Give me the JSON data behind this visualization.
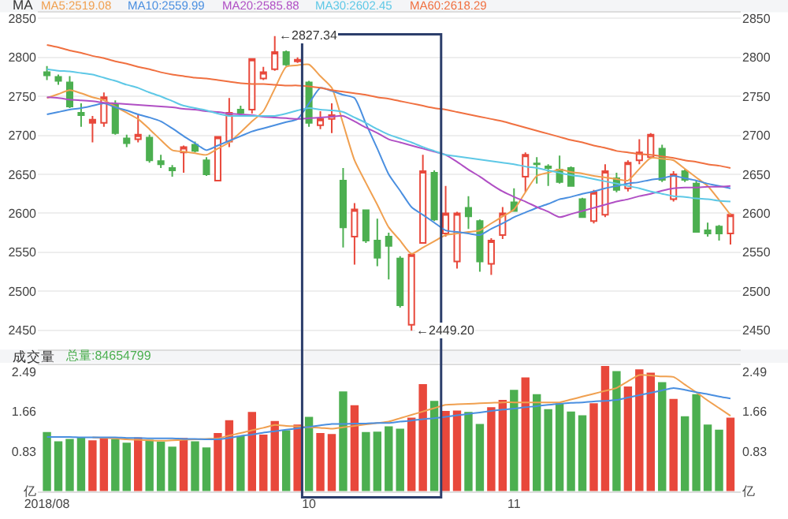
{
  "chart_data": [
    {
      "type": "candlestick",
      "title": "MA",
      "categories": [
        "2018/08",
        null,
        null,
        null,
        null,
        null,
        null,
        null,
        null,
        null,
        null,
        null,
        null,
        null,
        null,
        null,
        null,
        null,
        null,
        null,
        null,
        null,
        null,
        "10",
        null,
        null,
        null,
        null,
        null,
        null,
        null,
        null,
        null,
        null,
        null,
        null,
        null,
        null,
        null,
        null,
        null,
        "11",
        null,
        null,
        null,
        null,
        null,
        null,
        null,
        null,
        null,
        null,
        null,
        null,
        null,
        null,
        null,
        null,
        null,
        null,
        null
      ],
      "ohlc": [
        [
          2781,
          2789,
          2771,
          2777
        ],
        [
          2775,
          2778,
          2765,
          2770
        ],
        [
          2768,
          2776,
          2735,
          2737
        ],
        [
          2729,
          2741,
          2711,
          2726
        ],
        [
          2716,
          2725,
          2691,
          2720
        ],
        [
          2716,
          2755,
          2711,
          2749
        ],
        [
          2740,
          2745,
          2701,
          2703
        ],
        [
          2696,
          2701,
          2685,
          2690
        ],
        [
          2695,
          2726,
          2691,
          2701
        ],
        [
          2697,
          2701,
          2665,
          2668
        ],
        [
          2667,
          2675,
          2658,
          2663
        ],
        [
          2658,
          2662,
          2647,
          2655
        ],
        [
          2678,
          2687,
          2652,
          2685
        ],
        [
          2688,
          2692,
          2678,
          2680
        ],
        [
          2668,
          2672,
          2648,
          2650
        ],
        [
          2642,
          2699,
          2641,
          2698
        ],
        [
          2692,
          2748,
          2685,
          2729
        ],
        [
          2733,
          2738,
          2725,
          2729
        ],
        [
          2733,
          2798,
          2728,
          2798
        ],
        [
          2773,
          2788,
          2771,
          2781
        ],
        [
          2785,
          2827.34,
          2783,
          2807
        ],
        [
          2807,
          2809,
          2789,
          2791
        ],
        [
          2795,
          2800,
          2793,
          2797
        ],
        [
          2768,
          2770,
          2711,
          2716
        ],
        [
          2713,
          2731,
          2708,
          2721
        ],
        [
          2721,
          2741,
          2703,
          2726
        ],
        [
          2642,
          2658,
          2556,
          2582
        ],
        [
          2570,
          2613,
          2534,
          2605
        ],
        [
          2604,
          2605,
          2562,
          2565
        ],
        [
          2565,
          2593,
          2532,
          2543
        ],
        [
          2570,
          2575,
          2515,
          2558
        ],
        [
          2542,
          2545,
          2479,
          2482
        ],
        [
          2457,
          2547,
          2449.2,
          2547
        ],
        [
          2562,
          2675,
          2561,
          2654
        ],
        [
          2652,
          2655,
          2590,
          2592
        ],
        [
          2574,
          2635,
          2570,
          2600
        ],
        [
          2538,
          2602,
          2529,
          2600
        ],
        [
          2607,
          2622,
          2580,
          2596
        ],
        [
          2590,
          2592,
          2525,
          2538
        ],
        [
          2535,
          2568,
          2521,
          2565
        ],
        [
          2572,
          2608,
          2567,
          2600
        ],
        [
          2614,
          2632,
          2602,
          2603
        ],
        [
          2647,
          2678,
          2627,
          2675
        ],
        [
          2664,
          2672,
          2638,
          2663
        ],
        [
          2660,
          2663,
          2635,
          2658
        ],
        [
          2656,
          2674,
          2638,
          2640
        ],
        [
          2658,
          2660,
          2634,
          2635
        ],
        [
          2618,
          2620,
          2594,
          2595
        ],
        [
          2590,
          2630,
          2587,
          2627
        ],
        [
          2598,
          2663,
          2595,
          2654
        ],
        [
          2645,
          2652,
          2627,
          2630
        ],
        [
          2632,
          2668,
          2628,
          2665
        ],
        [
          2668,
          2695,
          2663,
          2678
        ],
        [
          2672,
          2703,
          2670,
          2701
        ],
        [
          2683,
          2688,
          2640,
          2643
        ],
        [
          2618,
          2654,
          2615,
          2650
        ],
        [
          2654,
          2656,
          2640,
          2643
        ],
        [
          2638,
          2642,
          2575,
          2576
        ],
        [
          2578,
          2588,
          2570,
          2574
        ],
        [
          2583,
          2585,
          2565,
          2574
        ],
        [
          2574,
          2600,
          2560,
          2598
        ]
      ],
      "colors": [
        "#4caf50",
        "#4caf50",
        "#4caf50",
        "#4caf50",
        "#e8483b",
        "#e8483b",
        "#4caf50",
        "#4caf50",
        "#e8483b",
        "#4caf50",
        "#4caf50",
        "#4caf50",
        "#e8483b",
        "#4caf50",
        "#4caf50",
        "#e8483b",
        "#e8483b",
        "#4caf50",
        "#e8483b",
        "#e8483b",
        "#e8483b",
        "#4caf50",
        "#e8483b",
        "#4caf50",
        "#e8483b",
        "#e8483b",
        "#4caf50",
        "#e8483b",
        "#4caf50",
        "#4caf50",
        "#4caf50",
        "#4caf50",
        "#e8483b",
        "#e8483b",
        "#4caf50",
        "#e8483b",
        "#e8483b",
        "#4caf50",
        "#4caf50",
        "#e8483b",
        "#e8483b",
        "#4caf50",
        "#e8483b",
        "#4caf50",
        "#4caf50",
        "#4caf50",
        "#4caf50",
        "#4caf50",
        "#e8483b",
        "#e8483b",
        "#4caf50",
        "#e8483b",
        "#e8483b",
        "#e8483b",
        "#4caf50",
        "#e8483b",
        "#4caf50",
        "#4caf50",
        "#4caf50",
        "#4caf50",
        "#e8483b"
      ],
      "series": [
        {
          "type": "line",
          "name": "MA5:2519.08",
          "color": "#f0a050",
          "values": [
            2748,
            2753,
            2758,
            2754,
            2749,
            2745,
            2737,
            2729,
            2721,
            2708,
            2694,
            2681,
            2679,
            2677,
            2675,
            2683,
            2691,
            2704,
            2718,
            2731,
            2760,
            2788,
            2790,
            2791,
            2776,
            2761,
            2715,
            2668,
            2639,
            2611,
            2582,
            2565,
            2548,
            2556,
            2564,
            2572,
            2574,
            2576,
            2578,
            2587,
            2596,
            2605,
            2627,
            2648,
            2652,
            2656,
            2653,
            2651,
            2648,
            2646,
            2644,
            2642,
            2657,
            2671,
            2670,
            2668,
            2657,
            2646,
            2635,
            2617,
            2598
          ]
        },
        {
          "type": "line",
          "name": "MA10:2559.99",
          "color": "#4a8fe0",
          "values": [
            2727,
            2730,
            2733,
            2735,
            2738,
            2741,
            2736,
            2732,
            2727,
            2723,
            2718,
            2709,
            2699,
            2690,
            2681,
            2687,
            2693,
            2699,
            2705,
            2709,
            2713,
            2717,
            2721,
            2741,
            2761,
            2757,
            2752,
            2748,
            2715,
            2683,
            2650,
            2629,
            2608,
            2598,
            2588,
            2578,
            2576,
            2574,
            2572,
            2580,
            2587,
            2595,
            2601,
            2607,
            2612,
            2618,
            2621,
            2625,
            2628,
            2632,
            2635,
            2638,
            2640,
            2643,
            2645,
            2648,
            2645,
            2642,
            2638,
            2635,
            2632
          ]
        },
        {
          "type": "line",
          "name": "MA20:2585.88",
          "color": "#b04fc4",
          "values": [
            2749,
            2748,
            2746,
            2745,
            2744,
            2742,
            2741,
            2740,
            2739,
            2738,
            2737,
            2736,
            2734,
            2733,
            2731,
            2730,
            2728,
            2727,
            2726,
            2724,
            2723,
            2722,
            2721,
            2722,
            2723,
            2724,
            2725,
            2718,
            2710,
            2703,
            2695,
            2691,
            2687,
            2683,
            2679,
            2675,
            2666,
            2656,
            2647,
            2637,
            2628,
            2621,
            2615,
            2608,
            2602,
            2595,
            2599,
            2603,
            2607,
            2611,
            2615,
            2618,
            2622,
            2625,
            2629,
            2632,
            2633,
            2633,
            2634,
            2634,
            2635
          ]
        },
        {
          "type": "line",
          "name": "MA30:2602.45",
          "color": "#5ec8e6",
          "values": [
            2785,
            2783,
            2782,
            2780,
            2778,
            2774,
            2770,
            2765,
            2761,
            2755,
            2750,
            2744,
            2738,
            2735,
            2732,
            2728,
            2725,
            2725,
            2725,
            2725,
            2725,
            2728,
            2732,
            2735,
            2733,
            2732,
            2730,
            2723,
            2716,
            2708,
            2701,
            2696,
            2691,
            2685,
            2680,
            2675,
            2673,
            2671,
            2669,
            2667,
            2665,
            2663,
            2660,
            2658,
            2655,
            2652,
            2649,
            2647,
            2644,
            2641,
            2638,
            2635,
            2632,
            2628,
            2625,
            2622,
            2621,
            2619,
            2618,
            2616,
            2615
          ]
        },
        {
          "type": "line",
          "name": "MA60:2618.29",
          "color": "#f07040",
          "values": [
            2816,
            2813,
            2809,
            2806,
            2802,
            2799,
            2795,
            2792,
            2788,
            2785,
            2781,
            2778,
            2776,
            2774,
            2773,
            2771,
            2769,
            2767,
            2766,
            2766,
            2765,
            2764,
            2764,
            2763,
            2761,
            2758,
            2756,
            2754,
            2752,
            2749,
            2747,
            2744,
            2741,
            2738,
            2735,
            2733,
            2730,
            2727,
            2724,
            2721,
            2718,
            2714,
            2710,
            2706,
            2702,
            2698,
            2694,
            2691,
            2687,
            2684,
            2680,
            2678,
            2676,
            2675,
            2673,
            2671,
            2668,
            2666,
            2663,
            2661,
            2658
          ]
        }
      ],
      "ylim": [
        2425,
        2858
      ],
      "yticks": [
        2450,
        2500,
        2550,
        2600,
        2650,
        2700,
        2750,
        2800,
        2850
      ],
      "y2lim": [
        2425,
        2858
      ],
      "y2ticks": [
        2450,
        2500,
        2550,
        2600,
        2650,
        2700,
        2750,
        2800,
        2850
      ],
      "tick_labels": "y",
      "grid": "y",
      "annotations": [
        "←2827.34",
        "←2449.20"
      ]
    },
    {
      "type": "bar",
      "title": "成交量",
      "subtitle": "总量:84654799",
      "categories": [
        "2018/08",
        null,
        null,
        null,
        null,
        null,
        null,
        null,
        null,
        null,
        null,
        null,
        null,
        null,
        null,
        null,
        null,
        null,
        null,
        null,
        null,
        null,
        null,
        "10",
        null,
        null,
        null,
        null,
        null,
        null,
        null,
        null,
        null,
        null,
        null,
        null,
        null,
        null,
        null,
        null,
        null,
        "11",
        null,
        null,
        null,
        null,
        null,
        null,
        null,
        null,
        null,
        null,
        null,
        null,
        null,
        null,
        null,
        null,
        null,
        null,
        null
      ],
      "series": [
        {
          "type": "bar",
          "colors": [
            "#4caf50",
            "#4caf50",
            "#4caf50",
            "#4caf50",
            "#e8483b",
            "#e8483b",
            "#4caf50",
            "#4caf50",
            "#e8483b",
            "#4caf50",
            "#4caf50",
            "#4caf50",
            "#e8483b",
            "#4caf50",
            "#4caf50",
            "#e8483b",
            "#e8483b",
            "#4caf50",
            "#e8483b",
            "#e8483b",
            "#e8483b",
            "#4caf50",
            "#e8483b",
            "#4caf50",
            "#e8483b",
            "#e8483b",
            "#4caf50",
            "#e8483b",
            "#4caf50",
            "#4caf50",
            "#4caf50",
            "#4caf50",
            "#e8483b",
            "#e8483b",
            "#4caf50",
            "#e8483b",
            "#e8483b",
            "#4caf50",
            "#4caf50",
            "#e8483b",
            "#e8483b",
            "#4caf50",
            "#e8483b",
            "#4caf50",
            "#4caf50",
            "#4caf50",
            "#4caf50",
            "#4caf50",
            "#e8483b",
            "#e8483b",
            "#4caf50",
            "#e8483b",
            "#e8483b",
            "#e8483b",
            "#4caf50",
            "#e8483b",
            "#4caf50",
            "#4caf50",
            "#4caf50",
            "#4caf50",
            "#e8483b"
          ],
          "values": [
            1.23,
            1.04,
            1.09,
            1.12,
            1.06,
            1.12,
            1.09,
            1.01,
            1.12,
            1.07,
            1.03,
            0.93,
            1.11,
            1.04,
            0.91,
            1.21,
            1.48,
            1.15,
            1.65,
            1.18,
            1.46,
            1.27,
            1.39,
            1.55,
            1.21,
            1.19,
            2.08,
            1.79,
            1.23,
            1.24,
            1.35,
            1.3,
            1.53,
            2.23,
            1.88,
            1.67,
            1.68,
            1.65,
            1.4,
            1.75,
            1.9,
            2.11,
            2.37,
            2.02,
            1.71,
            1.83,
            1.66,
            1.58,
            1.83,
            2.61,
            2.5,
            2.18,
            2.54,
            2.47,
            2.27,
            1.92,
            1.56,
            2.02,
            1.39,
            1.28,
            1.53
          ]
        },
        {
          "type": "line",
          "color": "#f0a050",
          "values": [
            null,
            null,
            null,
            null,
            1.12,
            1.11,
            1.1,
            1.08,
            1.07,
            1.06,
            1.05,
            1.06,
            1.07,
            1.08,
            1.09,
            1.1,
            1.16,
            1.21,
            1.27,
            1.32,
            1.38,
            1.36,
            1.35,
            1.33,
            1.32,
            1.3,
            1.33,
            1.36,
            1.39,
            1.42,
            1.45,
            1.52,
            1.59,
            1.66,
            1.73,
            1.8,
            1.81,
            1.82,
            1.83,
            1.84,
            1.85,
            1.85,
            1.85,
            1.85,
            1.85,
            1.85,
            1.91,
            1.97,
            2.03,
            2.09,
            2.15,
            2.29,
            2.42,
            2.41,
            2.39,
            2.38,
            2.22,
            2.06,
            1.89,
            1.73,
            1.57
          ]
        },
        {
          "type": "line",
          "color": "#4a8fe0",
          "values": [
            1.13,
            1.13,
            1.13,
            1.12,
            1.12,
            1.12,
            1.12,
            1.11,
            1.11,
            1.1,
            1.1,
            1.1,
            1.09,
            1.09,
            1.08,
            1.08,
            1.11,
            1.15,
            1.18,
            1.22,
            1.25,
            1.28,
            1.31,
            1.34,
            1.37,
            1.4,
            1.4,
            1.41,
            1.41,
            1.42,
            1.42,
            1.45,
            1.47,
            1.5,
            1.52,
            1.55,
            1.58,
            1.61,
            1.64,
            1.67,
            1.7,
            1.72,
            1.75,
            1.77,
            1.8,
            1.82,
            1.84,
            1.85,
            1.87,
            1.88,
            1.9,
            1.95,
            2.0,
            2.05,
            2.1,
            2.15,
            2.11,
            2.06,
            2.02,
            1.97,
            1.93
          ]
        }
      ],
      "ylim": [
        0,
        2.63
      ],
      "yticks": [
        {
          "value": 0,
          "label": "亿"
        },
        0.83,
        1.66,
        2.49
      ],
      "y2lim": [
        0,
        2.63
      ],
      "y2ticks": [
        {
          "value": 0,
          "label": "亿"
        },
        0.83,
        1.66,
        2.49
      ]
    }
  ]
}
